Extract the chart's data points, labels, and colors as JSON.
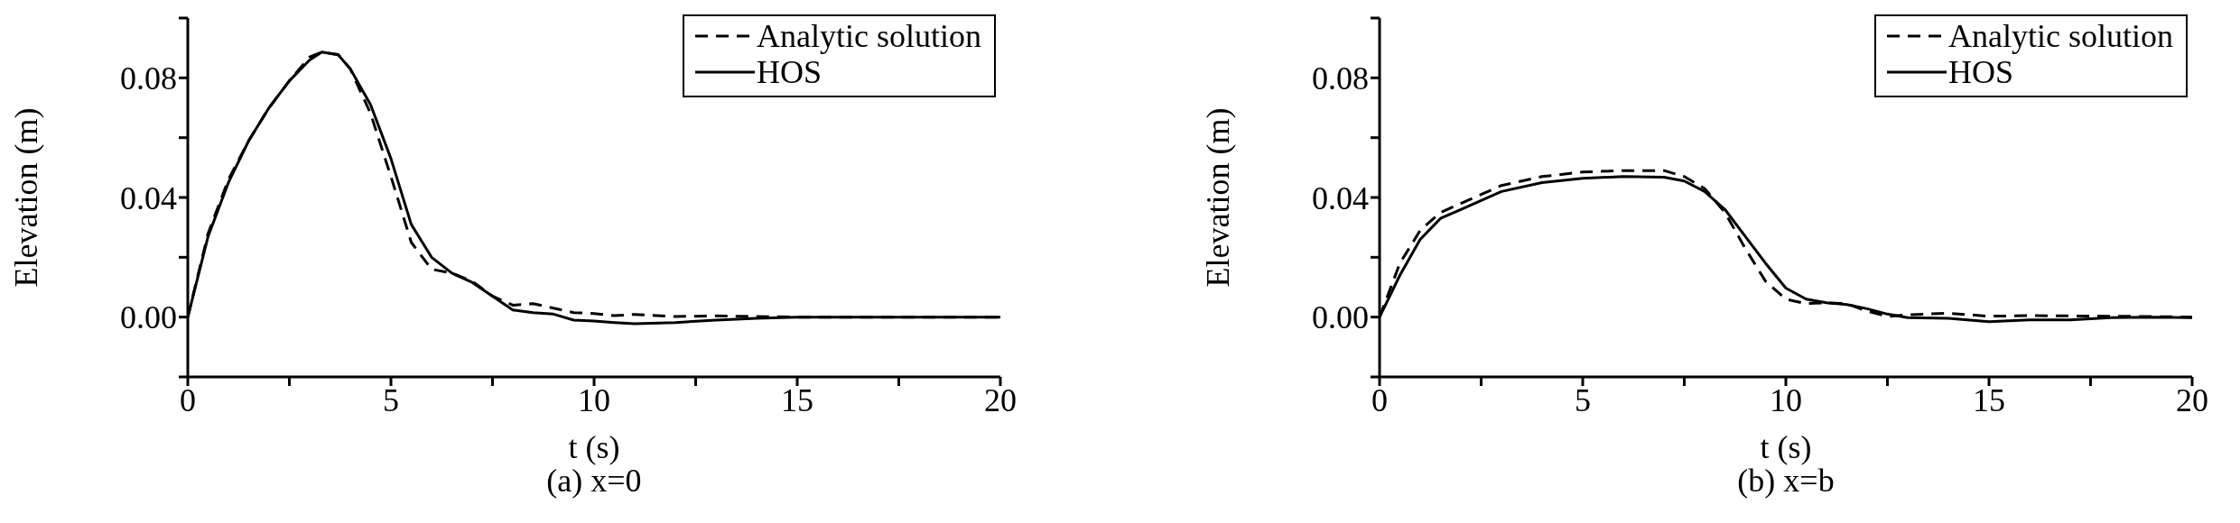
{
  "chart_data": [
    {
      "type": "line",
      "title": "(a) x=0",
      "xlabel": "t (s)",
      "ylabel": "Elevation (m)",
      "legend": "top right",
      "marker": "none",
      "x": [
        0,
        0.5,
        1,
        1.5,
        2,
        2.5,
        3,
        3.3,
        3.7,
        4,
        4.5,
        5,
        5.5,
        6,
        6.5,
        7,
        7.5,
        8,
        8.5,
        9,
        9.5,
        10,
        10.5,
        11,
        12,
        13,
        14,
        15,
        20
      ],
      "series": [
        {
          "name": "Analytic solution",
          "color": "#000000",
          "line_style": "dashed",
          "values": [
            0,
            0.028,
            0.046,
            0.059,
            0.07,
            0.079,
            0.087,
            0.0886,
            0.0878,
            0.083,
            0.068,
            0.047,
            0.025,
            0.016,
            0.0147,
            0.012,
            0.007,
            0.004,
            0.0045,
            0.003,
            0.0015,
            0.0012,
            0.0005,
            0.0009,
            0.0002,
            0.0004,
            0.0002,
            0,
            0
          ]
        },
        {
          "name": "HOS",
          "color": "#000000",
          "line_style": "solid",
          "values": [
            0,
            0.027,
            0.045,
            0.059,
            0.07,
            0.079,
            0.086,
            0.0886,
            0.0877,
            0.083,
            0.071,
            0.053,
            0.031,
            0.02,
            0.0147,
            0.0116,
            0.007,
            0.0024,
            0.0015,
            0.001,
            -0.001,
            -0.0013,
            -0.0018,
            -0.0022,
            -0.0018,
            -0.001,
            -0.0004,
            0,
            0
          ]
        }
      ],
      "xlim": [
        0,
        20
      ],
      "xticks": [
        0,
        {
          "value": 2.5,
          "label": null
        },
        5,
        {
          "value": 7.5,
          "label": null
        },
        10,
        {
          "value": 12.5,
          "label": null
        },
        15,
        {
          "value": 17.5,
          "label": null
        },
        20
      ],
      "ylim": [
        -0.02,
        0.1
      ],
      "yticks": [
        {
          "value": -0.02,
          "label": null
        },
        {
          "value": 0,
          "label": "0.00"
        },
        {
          "value": 0.02,
          "label": null
        },
        {
          "value": 0.04,
          "label": "0.04"
        },
        {
          "value": 0.06,
          "label": null
        },
        {
          "value": 0.08,
          "label": "0.08"
        },
        {
          "value": 0.1,
          "label": null
        }
      ]
    },
    {
      "type": "line",
      "title": "(b) x=b",
      "xlabel": "t (s)",
      "ylabel": "Elevation (m)",
      "legend": "top right",
      "marker": "none",
      "x": [
        0,
        0.5,
        1,
        1.5,
        2,
        3,
        4,
        5,
        6,
        7,
        7.5,
        8,
        8.5,
        9,
        9.5,
        10,
        10.5,
        11,
        11.5,
        12,
        12.5,
        13,
        14,
        15,
        16,
        17,
        18,
        19,
        20
      ],
      "series": [
        {
          "name": "Analytic solution",
          "color": "#000000",
          "line_style": "dashed",
          "values": [
            0,
            0.018,
            0.029,
            0.035,
            0.038,
            0.044,
            0.047,
            0.0485,
            0.049,
            0.049,
            0.047,
            0.043,
            0.035,
            0.023,
            0.012,
            0.006,
            0.0045,
            0.0048,
            0.0045,
            0.002,
            0.0002,
            0.0008,
            0.0013,
            0.0003,
            0.0005,
            0.0004,
            0.0003,
            0.0002,
            0
          ]
        },
        {
          "name": "HOS",
          "color": "#000000",
          "line_style": "solid",
          "values": [
            0,
            0.014,
            0.026,
            0.033,
            0.036,
            0.042,
            0.045,
            0.0464,
            0.047,
            0.0468,
            0.0455,
            0.042,
            0.036,
            0.027,
            0.018,
            0.0097,
            0.006,
            0.0048,
            0.0042,
            0.0028,
            0.001,
            -0.0002,
            -0.0004,
            -0.0015,
            -0.0009,
            -0.0009,
            -0.0002,
            0,
            -0.0002
          ]
        }
      ],
      "xlim": [
        0,
        20
      ],
      "xticks": [
        0,
        {
          "value": 2.5,
          "label": null
        },
        5,
        {
          "value": 7.5,
          "label": null
        },
        10,
        {
          "value": 12.5,
          "label": null
        },
        15,
        {
          "value": 17.5,
          "label": null
        },
        20
      ],
      "ylim": [
        -0.02,
        0.1
      ],
      "yticks": [
        {
          "value": -0.02,
          "label": null
        },
        {
          "value": 0,
          "label": "0.00"
        },
        {
          "value": 0.02,
          "label": null
        },
        {
          "value": 0.04,
          "label": "0.04"
        },
        {
          "value": 0.06,
          "label": null
        },
        {
          "value": 0.08,
          "label": "0.08"
        },
        {
          "value": 0.1,
          "label": null
        }
      ]
    }
  ]
}
